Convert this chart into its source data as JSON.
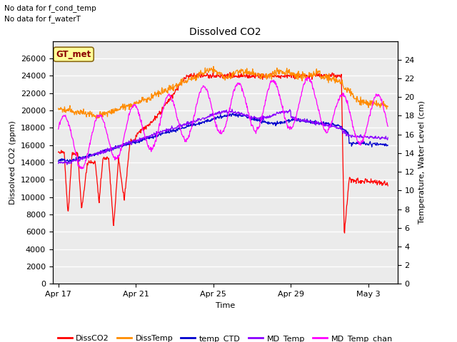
{
  "title": "Dissolved CO2",
  "title_notes": [
    "No data for f_cond_temp",
    "No data for f_waterT"
  ],
  "xlabel": "Time",
  "ylabel_left": "Dissolved CO2 (ppm)",
  "ylabel_right": "Temperature, Water Level (cm)",
  "ylim_left": [
    0,
    28000
  ],
  "ylim_right": [
    0,
    26
  ],
  "yticks_left": [
    0,
    2000,
    4000,
    6000,
    8000,
    10000,
    12000,
    14000,
    16000,
    18000,
    20000,
    22000,
    24000,
    26000
  ],
  "yticks_right": [
    0,
    2,
    4,
    6,
    8,
    10,
    12,
    14,
    16,
    18,
    20,
    22,
    24
  ],
  "xtick_labels": [
    "Apr 17",
    "Apr 21",
    "Apr 25",
    "Apr 29",
    "May 3"
  ],
  "xtick_positions": [
    0,
    4,
    8,
    12,
    16
  ],
  "legend_labels": [
    "DissCO2",
    "DissTemp",
    "temp_CTD",
    "MD_Temp",
    "MD_Temp_chan"
  ],
  "legend_colors": [
    "#ff0000",
    "#ff8c00",
    "#0000cd",
    "#8b00ff",
    "#ff00ff"
  ],
  "gt_met_label": "GT_met",
  "gt_met_bg": "#ffff99",
  "gt_met_border": "#8b6914",
  "plot_bg": "#ebebeb",
  "grid_color": "#ffffff"
}
